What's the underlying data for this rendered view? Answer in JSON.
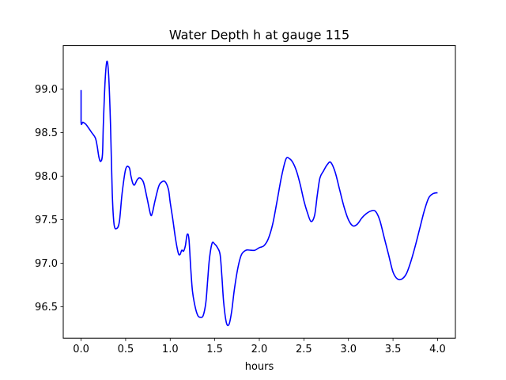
{
  "chart_data": {
    "type": "line",
    "title": "Water Depth h at gauge 115",
    "xlabel": "hours",
    "ylabel": "",
    "xlim": [
      -0.2,
      4.2
    ],
    "ylim": [
      96.14,
      99.5
    ],
    "xticks": [
      0.0,
      0.5,
      1.0,
      1.5,
      2.0,
      2.5,
      3.0,
      3.5,
      4.0
    ],
    "xtick_labels": [
      "0.0",
      "0.5",
      "1.0",
      "1.5",
      "2.0",
      "2.5",
      "3.0",
      "3.5",
      "4.0"
    ],
    "yticks": [
      96.5,
      97.0,
      97.5,
      98.0,
      98.5,
      99.0
    ],
    "ytick_labels": [
      "96.5",
      "97.0",
      "97.5",
      "98.0",
      "98.5",
      "99.0"
    ],
    "grid": false,
    "series": [
      {
        "color": "#0000ff",
        "x": [
          0.0,
          0.0,
          0.02,
          0.05,
          0.08,
          0.12,
          0.16,
          0.18,
          0.2,
          0.22,
          0.24,
          0.25,
          0.27,
          0.29,
          0.31,
          0.33,
          0.35,
          0.37,
          0.4,
          0.43,
          0.46,
          0.5,
          0.54,
          0.56,
          0.58,
          0.6,
          0.63,
          0.66,
          0.7,
          0.74,
          0.78,
          0.8,
          0.83,
          0.87,
          0.9,
          0.94,
          0.98,
          1.0,
          1.03,
          1.06,
          1.09,
          1.11,
          1.13,
          1.15,
          1.17,
          1.19,
          1.21,
          1.23,
          1.25,
          1.28,
          1.31,
          1.34,
          1.37,
          1.4,
          1.42,
          1.44,
          1.47,
          1.5,
          1.53,
          1.56,
          1.58,
          1.6,
          1.63,
          1.66,
          1.69,
          1.72,
          1.76,
          1.8,
          1.85,
          1.9,
          1.95,
          2.0,
          2.05,
          2.1,
          2.15,
          2.2,
          2.25,
          2.3,
          2.34,
          2.38,
          2.42,
          2.46,
          2.5,
          2.54,
          2.58,
          2.62,
          2.65,
          2.68,
          2.72,
          2.76,
          2.8,
          2.85,
          2.9,
          2.95,
          3.0,
          3.05,
          3.1,
          3.15,
          3.2,
          3.25,
          3.3,
          3.35,
          3.4,
          3.45,
          3.5,
          3.55,
          3.6,
          3.65,
          3.7,
          3.75,
          3.8,
          3.85,
          3.9,
          3.95,
          4.0
        ],
        "y": [
          98.99,
          98.62,
          98.62,
          98.6,
          98.56,
          98.5,
          98.44,
          98.35,
          98.22,
          98.17,
          98.25,
          98.6,
          99.1,
          99.32,
          99.15,
          98.6,
          97.8,
          97.45,
          97.4,
          97.48,
          97.8,
          98.08,
          98.1,
          98.0,
          97.92,
          97.9,
          97.96,
          97.98,
          97.93,
          97.75,
          97.56,
          97.58,
          97.72,
          97.88,
          97.93,
          97.94,
          97.85,
          97.7,
          97.5,
          97.28,
          97.12,
          97.1,
          97.15,
          97.14,
          97.2,
          97.33,
          97.28,
          96.95,
          96.68,
          96.5,
          96.4,
          96.38,
          96.4,
          96.55,
          96.8,
          97.05,
          97.23,
          97.22,
          97.18,
          97.1,
          96.85,
          96.55,
          96.32,
          96.3,
          96.45,
          96.7,
          96.95,
          97.1,
          97.15,
          97.15,
          97.15,
          97.18,
          97.2,
          97.28,
          97.45,
          97.72,
          98.0,
          98.2,
          98.2,
          98.15,
          98.05,
          97.9,
          97.72,
          97.58,
          97.48,
          97.55,
          97.78,
          97.98,
          98.06,
          98.13,
          98.16,
          98.05,
          97.85,
          97.65,
          97.5,
          97.43,
          97.45,
          97.52,
          97.57,
          97.6,
          97.6,
          97.5,
          97.3,
          97.1,
          96.9,
          96.82,
          96.82,
          96.88,
          97.02,
          97.2,
          97.4,
          97.6,
          97.75,
          97.8,
          97.81
        ]
      }
    ]
  }
}
